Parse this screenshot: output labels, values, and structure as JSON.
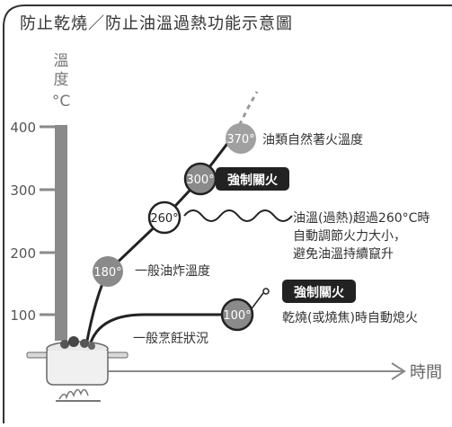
{
  "title": "防止乾燒／防止油溫過熱功能示意圖",
  "y_axis": {
    "label_chars": [
      "溫",
      "度"
    ],
    "unit": "°C",
    "ticks": [
      "400",
      "300",
      "200",
      "100"
    ]
  },
  "x_axis": {
    "label": "時間"
  },
  "points": {
    "p180": "180°",
    "p260": "260°",
    "p300": "300°",
    "p370": "370°",
    "p100": "100°"
  },
  "labels": {
    "smoke_point": "油類自然著火溫度",
    "cutoff_high": "強制關火",
    "frying": "一般油炸溫度",
    "regulate_line1": "油溫(過熱)超過260°C時",
    "regulate_line2": "自動調節火力大小，",
    "regulate_line3": "避免油溫持續竄升",
    "cutoff_low": "強制關火",
    "dry_burn": "乾燒(或燒焦)時自動熄火",
    "normal": "一般烹飪狀況"
  },
  "colors": {
    "axis": "#8a8a8a",
    "dark": "#222222",
    "light_line": "#9a9a9a",
    "circle_fill": "#8a8a8a"
  }
}
